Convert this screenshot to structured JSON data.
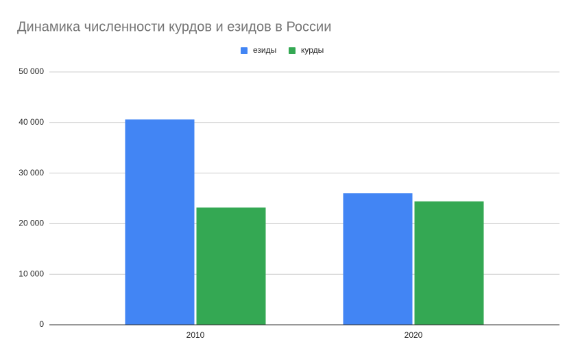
{
  "chart_data": {
    "type": "bar",
    "title": "Динамика численности курдов и езидов в России",
    "categories": [
      "2010",
      "2020"
    ],
    "series": [
      {
        "name": "езиды",
        "color": "#4285f4",
        "values": [
          40600,
          26000
        ]
      },
      {
        "name": "курды",
        "color": "#34a853",
        "values": [
          23200,
          24400
        ]
      }
    ],
    "ylim": [
      0,
      50000
    ],
    "yticks": [
      0,
      {
        "value": 10000,
        "label": "10 000"
      },
      {
        "value": 20000,
        "label": "20 000"
      },
      {
        "value": 30000,
        "label": "30 000"
      },
      {
        "value": 40000,
        "label": "40 000"
      },
      {
        "value": 50000,
        "label": "50 000"
      }
    ],
    "grid": true,
    "legend": "top"
  }
}
